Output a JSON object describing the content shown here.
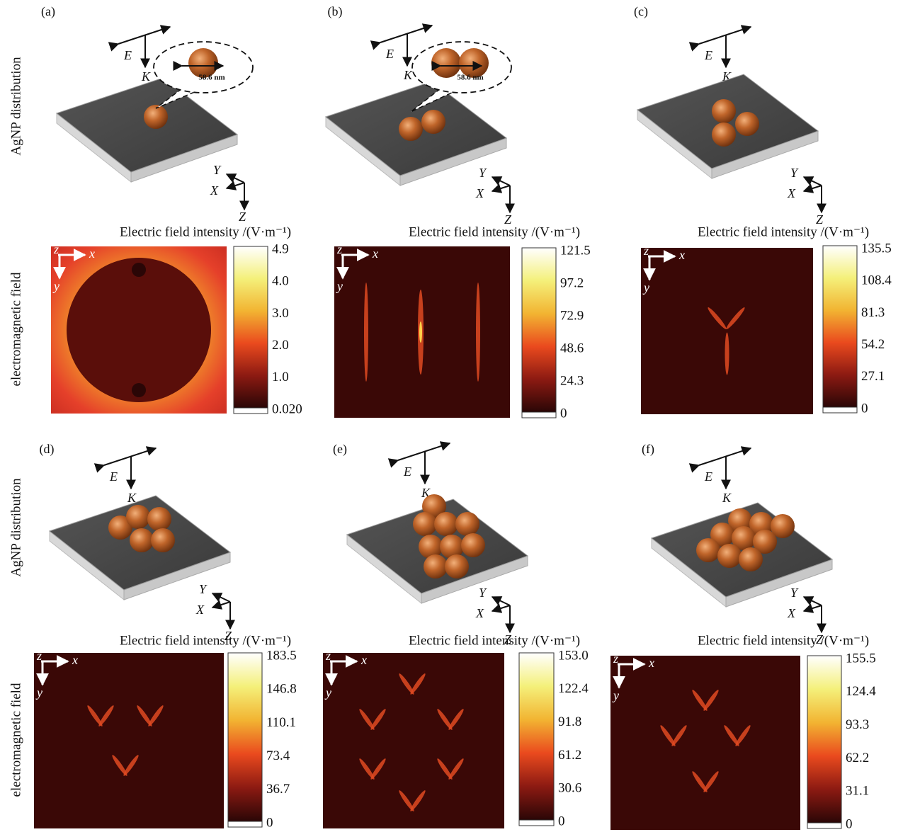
{
  "row_labels": {
    "top": "AgNP distribution",
    "bottom": "electromagnetic field"
  },
  "beam_axes": {
    "e": "E",
    "k": "K"
  },
  "sample_axes": {
    "x": "X",
    "y": "Y",
    "z": "Z"
  },
  "field_axes": {
    "x": "x",
    "y": "y",
    "z": "z"
  },
  "panels": [
    {
      "label": "(a)",
      "dimension": "58.6 nm",
      "colorbar_title": "Electric field intensity /(V·m⁻¹)",
      "ticks": [
        "4.9",
        "4.0",
        "3.0",
        "2.0",
        "1.0",
        "0.020"
      ]
    },
    {
      "label": "(b)",
      "dimension": "58.6 nm",
      "colorbar_title": "Electric field intensity /(V·m⁻¹)",
      "ticks": [
        "121.5",
        "97.2",
        "72.9",
        "48.6",
        "24.3",
        "0"
      ]
    },
    {
      "label": "(c)",
      "colorbar_title": "Electric field intensity /(V·m⁻¹)",
      "ticks": [
        "135.5",
        "108.4",
        "81.3",
        "54.2",
        "27.1",
        "0"
      ]
    },
    {
      "label": "(d)",
      "colorbar_title": "Electric field intensity /(V·m⁻¹)",
      "ticks": [
        "183.5",
        "146.8",
        "110.1",
        "73.4",
        "36.7",
        "0"
      ]
    },
    {
      "label": "(e)",
      "colorbar_title": "Electric field intensity /(V·m⁻¹)",
      "ticks": [
        "153.0",
        "122.4",
        "91.8",
        "61.2",
        "30.6",
        "0"
      ]
    },
    {
      "label": "(f)",
      "colorbar_title": "Electric field intensity /(V·m⁻¹)",
      "ticks": [
        "155.5",
        "124.4",
        "93.3",
        "62.2",
        "31.1",
        "0"
      ]
    }
  ]
}
